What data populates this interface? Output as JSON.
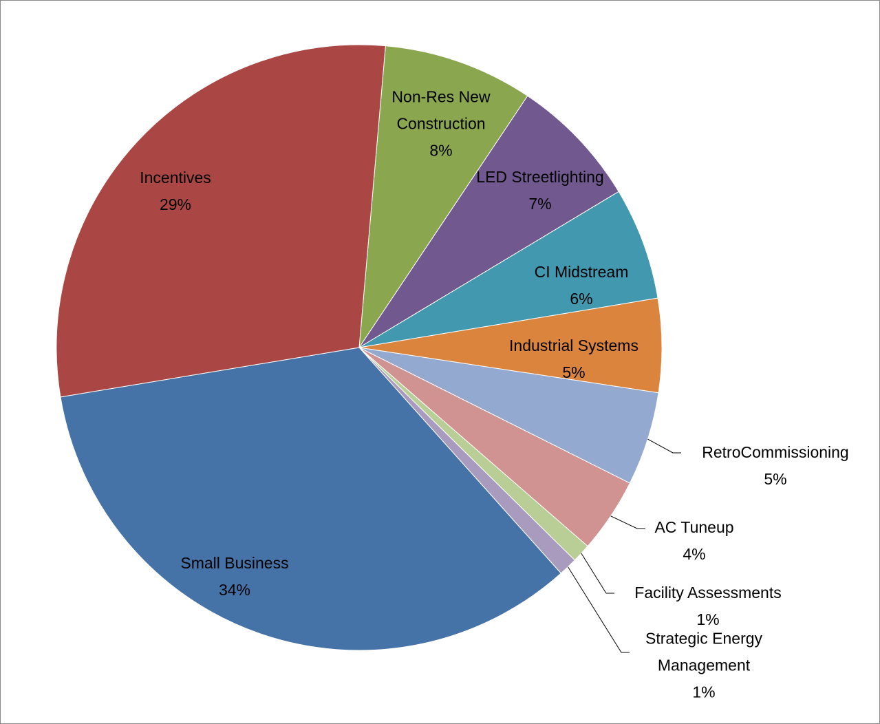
{
  "chart_data": {
    "type": "pie",
    "categories": [
      "Non-Res New Construction",
      "LED Streetlighting",
      "CI Midstream",
      "Industrial Systems",
      "RetroCommissioning",
      "AC Tuneup",
      "Facility Assessments",
      "Strategic Energy Management",
      "Small Business",
      "Incentives"
    ],
    "values": [
      8,
      7,
      6,
      5,
      5,
      4,
      1,
      1,
      34,
      29
    ],
    "value_labels": [
      "8%",
      "7%",
      "6%",
      "5%",
      "5%",
      "4%",
      "1%",
      "1%",
      "34%",
      "29%"
    ],
    "colors": [
      "#8aa64e",
      "#71588f",
      "#4198af",
      "#db843d",
      "#93a9cf",
      "#d19392",
      "#b9cd96",
      "#a99bbd",
      "#4572a7",
      "#aa4643"
    ]
  }
}
